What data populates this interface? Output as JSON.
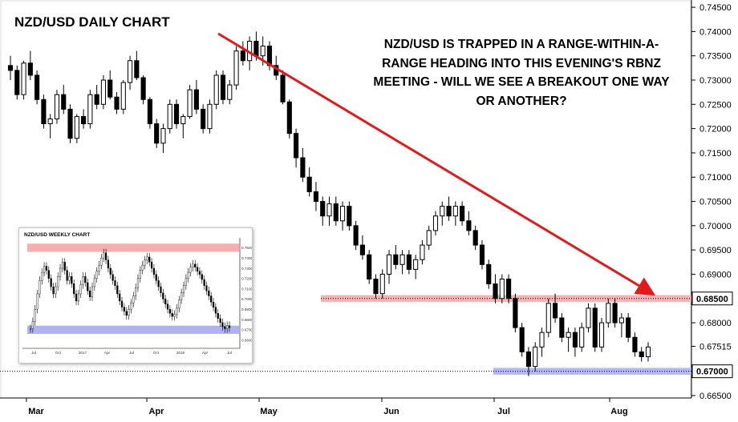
{
  "chart_data": {
    "type": "candlestick",
    "title": "NZD/USD DAILY CHART",
    "annotation": "NZD/USD IS TRAPPED IN A RANGE-WITHIN-A-RANGE HEADING INTO THIS EVENING'S RBNZ MEETING - WILL WE SEE A BREAKOUT ONE WAY OR ANOTHER?",
    "ylim": [
      0.6645,
      0.7465
    ],
    "y_ticks": [
      "0.74500",
      "0.74000",
      "0.73500",
      "0.73000",
      "0.72500",
      "0.72000",
      "0.71500",
      "0.71000",
      "0.70500",
      "0.70000",
      "0.69500",
      "0.69000",
      "0.68500",
      "0.68000",
      "0.67515",
      "0.67000",
      "0.66500"
    ],
    "x_labels": [
      "Mar",
      "Apr",
      "May",
      "Jun",
      "Jul",
      "Aug"
    ],
    "levels": [
      {
        "label": "0.68500",
        "value": 0.685,
        "band": [
          0.6843,
          0.6857
        ],
        "color": "#f4a6a6"
      },
      {
        "label": "0.67000",
        "value": 0.67,
        "band": [
          0.6693,
          0.6707
        ],
        "color": "#a9a9ef"
      }
    ],
    "current_price": "0.67515",
    "ohlc": [
      [
        0.733,
        0.735,
        0.73,
        0.732
      ],
      [
        0.732,
        0.733,
        0.726,
        0.727
      ],
      [
        0.727,
        0.734,
        0.726,
        0.7335
      ],
      [
        0.7335,
        0.736,
        0.73,
        0.731
      ],
      [
        0.731,
        0.732,
        0.725,
        0.726
      ],
      [
        0.726,
        0.727,
        0.72,
        0.721
      ],
      [
        0.721,
        0.723,
        0.718,
        0.722
      ],
      [
        0.722,
        0.728,
        0.721,
        0.727
      ],
      [
        0.727,
        0.729,
        0.723,
        0.724
      ],
      [
        0.724,
        0.725,
        0.717,
        0.718
      ],
      [
        0.718,
        0.723,
        0.717,
        0.7225
      ],
      [
        0.7225,
        0.724,
        0.72,
        0.721
      ],
      [
        0.721,
        0.728,
        0.72,
        0.727
      ],
      [
        0.727,
        0.729,
        0.724,
        0.725
      ],
      [
        0.725,
        0.731,
        0.724,
        0.73
      ],
      [
        0.73,
        0.732,
        0.726,
        0.7265
      ],
      [
        0.7265,
        0.7275,
        0.723,
        0.724
      ],
      [
        0.724,
        0.73,
        0.723,
        0.7295
      ],
      [
        0.7295,
        0.735,
        0.728,
        0.734
      ],
      [
        0.734,
        0.736,
        0.73,
        0.7305
      ],
      [
        0.7305,
        0.731,
        0.725,
        0.726
      ],
      [
        0.726,
        0.7265,
        0.72,
        0.721
      ],
      [
        0.721,
        0.722,
        0.716,
        0.717
      ],
      [
        0.717,
        0.721,
        0.715,
        0.72
      ],
      [
        0.72,
        0.726,
        0.719,
        0.725
      ],
      [
        0.725,
        0.726,
        0.72,
        0.721
      ],
      [
        0.721,
        0.723,
        0.718,
        0.7225
      ],
      [
        0.7225,
        0.729,
        0.722,
        0.728
      ],
      [
        0.728,
        0.73,
        0.723,
        0.724
      ],
      [
        0.724,
        0.725,
        0.719,
        0.72
      ],
      [
        0.72,
        0.726,
        0.719,
        0.725
      ],
      [
        0.725,
        0.732,
        0.724,
        0.731
      ],
      [
        0.731,
        0.732,
        0.725,
        0.726
      ],
      [
        0.726,
        0.73,
        0.725,
        0.729
      ],
      [
        0.729,
        0.737,
        0.728,
        0.736
      ],
      [
        0.736,
        0.738,
        0.733,
        0.734
      ],
      [
        0.734,
        0.739,
        0.732,
        0.738
      ],
      [
        0.738,
        0.74,
        0.734,
        0.735
      ],
      [
        0.735,
        0.739,
        0.733,
        0.737
      ],
      [
        0.737,
        0.738,
        0.732,
        0.733
      ],
      [
        0.733,
        0.735,
        0.73,
        0.731
      ],
      [
        0.731,
        0.732,
        0.725,
        0.7255
      ],
      [
        0.7255,
        0.726,
        0.718,
        0.719
      ],
      [
        0.719,
        0.72,
        0.712,
        0.714
      ],
      [
        0.714,
        0.716,
        0.709,
        0.71
      ],
      [
        0.71,
        0.712,
        0.706,
        0.707
      ],
      [
        0.707,
        0.709,
        0.703,
        0.705
      ],
      [
        0.705,
        0.706,
        0.7,
        0.702
      ],
      [
        0.702,
        0.706,
        0.7,
        0.7045
      ],
      [
        0.7045,
        0.706,
        0.7,
        0.701
      ],
      [
        0.701,
        0.705,
        0.699,
        0.704
      ],
      [
        0.704,
        0.705,
        0.699,
        0.7
      ],
      [
        0.7,
        0.701,
        0.695,
        0.696
      ],
      [
        0.696,
        0.698,
        0.693,
        0.694
      ],
      [
        0.694,
        0.695,
        0.688,
        0.689
      ],
      [
        0.689,
        0.69,
        0.685,
        0.686
      ],
      [
        0.686,
        0.691,
        0.685,
        0.69
      ],
      [
        0.69,
        0.695,
        0.688,
        0.694
      ],
      [
        0.694,
        0.696,
        0.691,
        0.692
      ],
      [
        0.692,
        0.695,
        0.69,
        0.694
      ],
      [
        0.694,
        0.695,
        0.69,
        0.691
      ],
      [
        0.691,
        0.694,
        0.689,
        0.693
      ],
      [
        0.693,
        0.697,
        0.692,
        0.696
      ],
      [
        0.696,
        0.7,
        0.695,
        0.699
      ],
      [
        0.699,
        0.703,
        0.698,
        0.702
      ],
      [
        0.702,
        0.705,
        0.7,
        0.704
      ],
      [
        0.704,
        0.706,
        0.701,
        0.702
      ],
      [
        0.702,
        0.705,
        0.7,
        0.704
      ],
      [
        0.704,
        0.705,
        0.7,
        0.701
      ],
      [
        0.701,
        0.703,
        0.698,
        0.699
      ],
      [
        0.699,
        0.7,
        0.695,
        0.696
      ],
      [
        0.696,
        0.697,
        0.691,
        0.692
      ],
      [
        0.692,
        0.693,
        0.687,
        0.688
      ],
      [
        0.688,
        0.69,
        0.684,
        0.685
      ],
      [
        0.685,
        0.69,
        0.684,
        0.689
      ],
      [
        0.689,
        0.69,
        0.684,
        0.685
      ],
      [
        0.685,
        0.686,
        0.678,
        0.679
      ],
      [
        0.679,
        0.68,
        0.673,
        0.674
      ],
      [
        0.674,
        0.675,
        0.669,
        0.671
      ],
      [
        0.671,
        0.676,
        0.67,
        0.675
      ],
      [
        0.675,
        0.679,
        0.673,
        0.678
      ],
      [
        0.678,
        0.685,
        0.677,
        0.684
      ],
      [
        0.684,
        0.686,
        0.68,
        0.681
      ],
      [
        0.681,
        0.682,
        0.676,
        0.677
      ],
      [
        0.677,
        0.679,
        0.674,
        0.678
      ],
      [
        0.678,
        0.679,
        0.673,
        0.675
      ],
      [
        0.675,
        0.68,
        0.674,
        0.679
      ],
      [
        0.679,
        0.684,
        0.678,
        0.683
      ],
      [
        0.683,
        0.684,
        0.674,
        0.675
      ],
      [
        0.675,
        0.681,
        0.674,
        0.68
      ],
      [
        0.68,
        0.685,
        0.679,
        0.684
      ],
      [
        0.684,
        0.685,
        0.679,
        0.68
      ],
      [
        0.68,
        0.682,
        0.677,
        0.681
      ],
      [
        0.681,
        0.682,
        0.676,
        0.677
      ],
      [
        0.677,
        0.678,
        0.673,
        0.674
      ],
      [
        0.674,
        0.675,
        0.672,
        0.673
      ],
      [
        0.673,
        0.676,
        0.672,
        0.675
      ]
    ],
    "inset": {
      "title": "NZD/USD WEEKLY CHART",
      "ylim": [
        0.655,
        0.755
      ],
      "resistance_band": [
        0.746,
        0.754
      ],
      "support_band": [
        0.666,
        0.674
      ],
      "y_ticks": [
        "0.75000",
        "0.74000",
        "0.73000",
        "0.72000",
        "0.71000",
        "0.70000",
        "0.69000",
        "0.68000",
        "0.67000",
        "0.66000"
      ],
      "x_labels": [
        "Jul",
        "Oct",
        "2017",
        "Apr",
        "Jul",
        "Oct",
        "2018",
        "Apr",
        "Jul"
      ],
      "closes": [
        0.671,
        0.678,
        0.69,
        0.705,
        0.718,
        0.726,
        0.732,
        0.728,
        0.72,
        0.712,
        0.705,
        0.712,
        0.722,
        0.73,
        0.736,
        0.728,
        0.718,
        0.722,
        0.715,
        0.705,
        0.698,
        0.705,
        0.714,
        0.722,
        0.716,
        0.708,
        0.702,
        0.712,
        0.72,
        0.727,
        0.733,
        0.74,
        0.745,
        0.738,
        0.73,
        0.724,
        0.718,
        0.713,
        0.705,
        0.698,
        0.692,
        0.688,
        0.684,
        0.69,
        0.696,
        0.703,
        0.711,
        0.72,
        0.728,
        0.733,
        0.738,
        0.741,
        0.736,
        0.73,
        0.724,
        0.718,
        0.712,
        0.706,
        0.7,
        0.695,
        0.69,
        0.686,
        0.683,
        0.685,
        0.691,
        0.699,
        0.706,
        0.713,
        0.72,
        0.726,
        0.731,
        0.734,
        0.731,
        0.727,
        0.724,
        0.719,
        0.713,
        0.708,
        0.703,
        0.697,
        0.692,
        0.686,
        0.681,
        0.677,
        0.673,
        0.671,
        0.674,
        0.672
      ]
    }
  }
}
